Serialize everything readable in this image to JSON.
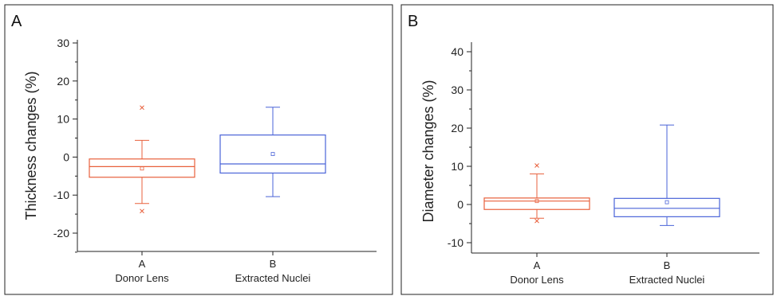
{
  "chart_data": [
    {
      "type": "box",
      "panel_label": "A",
      "ylabel": "Thickness changes (%)",
      "ylim": [
        -25,
        30
      ],
      "yticks": [
        -20,
        -10,
        0,
        10,
        20,
        30
      ],
      "categories": [
        "A",
        "B"
      ],
      "category_sublabels": [
        "Donor Lens",
        "Extracted Nuclei"
      ],
      "boxes": [
        {
          "name": "Donor Lens",
          "color": "#e8603c",
          "q1": -5.3,
          "median": -2.5,
          "q3": -0.5,
          "mean": -3.0,
          "whisker_low": -12.2,
          "whisker_high": 4.4,
          "outliers": [
            13.0,
            -14.2
          ]
        },
        {
          "name": "Extracted Nuclei",
          "color": "#4a63d8",
          "q1": -4.2,
          "median": -1.8,
          "q3": 5.8,
          "mean": 0.8,
          "whisker_low": -10.4,
          "whisker_high": 13.1,
          "outliers": []
        }
      ]
    },
    {
      "type": "box",
      "panel_label": "B",
      "ylabel": "Diameter changes (%)",
      "ylim": [
        -12,
        42
      ],
      "yticks": [
        -10,
        0,
        10,
        20,
        30,
        40
      ],
      "categories": [
        "A",
        "B"
      ],
      "category_sublabels": [
        "Donor Lens",
        "Extracted Nuclei"
      ],
      "boxes": [
        {
          "name": "Donor Lens",
          "color": "#e8603c",
          "q1": -1.3,
          "median": 0.9,
          "q3": 1.7,
          "mean": 0.9,
          "whisker_low": -3.6,
          "whisker_high": 8.0,
          "outliers": [
            10.2,
            -4.3
          ]
        },
        {
          "name": "Extracted Nuclei",
          "color": "#4a63d8",
          "q1": -3.2,
          "median": -1.0,
          "q3": 1.6,
          "mean": 0.6,
          "whisker_low": -5.5,
          "whisker_high": 20.8,
          "outliers": []
        }
      ]
    }
  ]
}
